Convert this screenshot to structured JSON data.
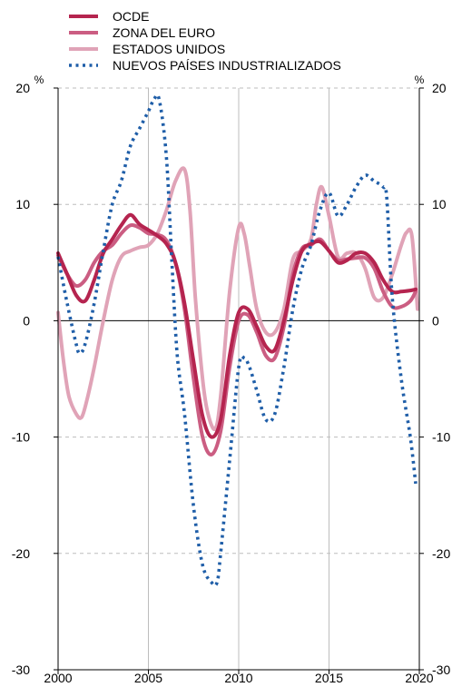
{
  "chart_data": {
    "type": "line",
    "title": "",
    "xlabel": "",
    "ylabel": "%",
    "ylabel_right": "%",
    "xlim": [
      2000,
      2020
    ],
    "ylim": [
      -30,
      20
    ],
    "x_ticks": [
      2000,
      2005,
      2010,
      2015,
      2020
    ],
    "y_ticks": [
      -30,
      -20,
      -10,
      0,
      10,
      20
    ],
    "grid": "vertical solid gray at years, horizontal dashed gray at y ticks",
    "legend_position": "top-left",
    "series": [
      {
        "name": "OCDE",
        "color": "#b5244f",
        "style": "solid",
        "x": [
          2000.0,
          2000.5,
          2001.0,
          2001.5,
          2002.0,
          2002.5,
          2003.0,
          2003.5,
          2004.0,
          2004.5,
          2005.0,
          2005.5,
          2006.0,
          2006.5,
          2007.0,
          2007.5,
          2008.0,
          2008.5,
          2009.0,
          2009.5,
          2010.0,
          2010.5,
          2011.0,
          2011.5,
          2012.0,
          2012.5,
          2013.0,
          2013.5,
          2014.0,
          2014.5,
          2015.0,
          2015.5,
          2016.0,
          2016.5,
          2017.0,
          2017.5,
          2018.0,
          2018.5,
          2019.0,
          2019.5,
          2019.8
        ],
        "values": [
          5.8,
          4.0,
          2.2,
          1.7,
          3.5,
          5.8,
          7.0,
          8.2,
          9.1,
          8.3,
          7.8,
          7.3,
          6.6,
          5.0,
          1.5,
          -3.5,
          -8.2,
          -10.0,
          -8.5,
          -3.0,
          0.7,
          1.0,
          -0.5,
          -2.2,
          -2.5,
          0.0,
          3.5,
          6.0,
          6.6,
          6.8,
          6.0,
          5.0,
          5.2,
          5.8,
          5.8,
          5.0,
          3.5,
          2.5,
          2.5,
          2.6,
          2.7
        ]
      },
      {
        "name": "ZONA DEL EURO",
        "color": "#cb5d82",
        "style": "solid",
        "x": [
          2000.0,
          2000.5,
          2001.0,
          2001.5,
          2002.0,
          2002.5,
          2003.0,
          2003.5,
          2004.0,
          2004.5,
          2005.0,
          2005.5,
          2006.0,
          2006.5,
          2007.0,
          2007.5,
          2008.0,
          2008.5,
          2009.0,
          2009.5,
          2010.0,
          2010.5,
          2011.0,
          2011.5,
          2012.0,
          2012.5,
          2013.0,
          2013.5,
          2014.0,
          2014.5,
          2015.0,
          2015.5,
          2016.0,
          2016.5,
          2017.0,
          2017.5,
          2018.0,
          2018.5,
          2019.0,
          2019.5,
          2019.8
        ],
        "values": [
          5.6,
          4.0,
          3.0,
          3.5,
          5.0,
          6.0,
          6.5,
          7.5,
          8.2,
          8.0,
          7.5,
          7.4,
          6.9,
          5.0,
          1.0,
          -5.0,
          -10.0,
          -11.5,
          -9.5,
          -4.0,
          0.0,
          0.5,
          -1.0,
          -3.0,
          -3.2,
          -0.5,
          4.0,
          6.2,
          6.5,
          7.0,
          6.0,
          5.2,
          5.3,
          5.4,
          5.4,
          4.5,
          2.5,
          1.2,
          1.2,
          1.7,
          2.5
        ]
      },
      {
        "name": "ESTADOS UNIDOS",
        "color": "#e0a3b7",
        "style": "solid",
        "x": [
          2000.0,
          2000.3,
          2000.6,
          2001.0,
          2001.3,
          2001.6,
          2002.0,
          2002.5,
          2003.0,
          2003.5,
          2004.0,
          2004.5,
          2005.0,
          2005.5,
          2006.0,
          2006.5,
          2007.0,
          2007.3,
          2007.6,
          2008.0,
          2008.3,
          2008.7,
          2009.0,
          2009.5,
          2010.0,
          2010.3,
          2010.6,
          2011.0,
          2011.5,
          2012.0,
          2012.5,
          2013.0,
          2013.5,
          2014.0,
          2014.3,
          2014.6,
          2015.0,
          2015.5,
          2016.0,
          2016.5,
          2017.0,
          2017.5,
          2018.0,
          2018.5,
          2019.0,
          2019.3,
          2019.6,
          2019.9
        ],
        "values": [
          0.7,
          -3.5,
          -6.5,
          -8.0,
          -8.3,
          -6.8,
          -4.0,
          0.0,
          3.5,
          5.5,
          6.0,
          6.3,
          6.5,
          7.5,
          9.5,
          12.0,
          13.0,
          9.5,
          2.0,
          -5.0,
          -8.0,
          -9.3,
          -6.5,
          2.5,
          8.0,
          7.5,
          4.8,
          1.0,
          -1.0,
          -1.0,
          1.0,
          5.3,
          6.0,
          7.0,
          10.0,
          11.5,
          9.0,
          5.5,
          5.8,
          5.8,
          4.5,
          2.0,
          2.0,
          4.0,
          6.5,
          7.6,
          7.2,
          1.0
        ]
      },
      {
        "name": "NUEVOS PAÍSES INDUSTRIALIZADOS",
        "color": "#1f5ea8",
        "style": "dotted",
        "x": [
          2000.0,
          2000.5,
          2001.0,
          2001.2,
          2001.5,
          2002.0,
          2002.5,
          2003.0,
          2003.5,
          2004.0,
          2004.5,
          2005.0,
          2005.3,
          2005.6,
          2006.0,
          2006.3,
          2006.6,
          2007.0,
          2007.5,
          2008.0,
          2008.5,
          2008.8,
          2009.0,
          2009.5,
          2010.0,
          2010.3,
          2010.6,
          2011.0,
          2011.5,
          2012.0,
          2012.5,
          2013.0,
          2013.5,
          2014.0,
          2014.5,
          2015.0,
          2015.5,
          2016.0,
          2016.5,
          2017.0,
          2017.5,
          2018.0,
          2018.2,
          2018.5,
          2019.0,
          2019.5,
          2019.8
        ],
        "values": [
          5.5,
          1.5,
          -2.0,
          -2.8,
          -2.0,
          1.5,
          6.0,
          10.0,
          12.0,
          15.0,
          16.5,
          18.0,
          19.0,
          19.0,
          14.0,
          5.0,
          -3.0,
          -8.0,
          -16.0,
          -21.0,
          -22.5,
          -22.5,
          -20.0,
          -12.0,
          -4.0,
          -3.2,
          -4.0,
          -6.0,
          -8.5,
          -8.0,
          -4.0,
          1.0,
          4.5,
          6.5,
          9.5,
          11.0,
          9.0,
          10.0,
          11.5,
          12.5,
          12.0,
          11.5,
          10.5,
          2.0,
          -5.0,
          -10.0,
          -14.0
        ]
      }
    ]
  }
}
